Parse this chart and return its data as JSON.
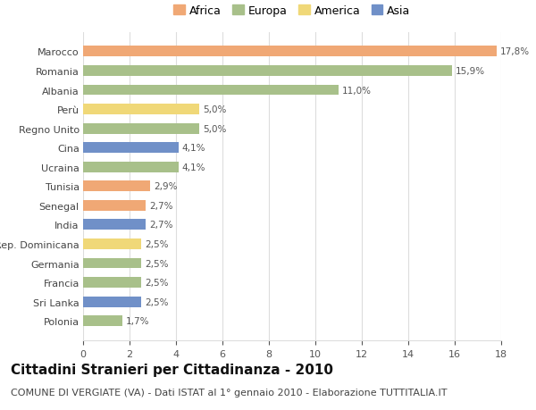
{
  "categories": [
    "Polonia",
    "Sri Lanka",
    "Francia",
    "Germania",
    "Rep. Dominicana",
    "India",
    "Senegal",
    "Tunisia",
    "Ucraina",
    "Cina",
    "Regno Unito",
    "Perù",
    "Albania",
    "Romania",
    "Marocco"
  ],
  "values": [
    1.7,
    2.5,
    2.5,
    2.5,
    2.5,
    2.7,
    2.7,
    2.9,
    4.1,
    4.1,
    5.0,
    5.0,
    11.0,
    15.9,
    17.8
  ],
  "labels": [
    "1,7%",
    "2,5%",
    "2,5%",
    "2,5%",
    "2,5%",
    "2,7%",
    "2,7%",
    "2,9%",
    "4,1%",
    "4,1%",
    "5,0%",
    "5,0%",
    "11,0%",
    "15,9%",
    "17,8%"
  ],
  "continents": [
    "Europa",
    "Asia",
    "Europa",
    "Europa",
    "America",
    "Asia",
    "Africa",
    "Africa",
    "Europa",
    "Asia",
    "Europa",
    "America",
    "Europa",
    "Europa",
    "Africa"
  ],
  "continent_colors": {
    "Africa": "#F0A875",
    "Europa": "#A8C08A",
    "America": "#F0D878",
    "Asia": "#7090C8"
  },
  "legend_order": [
    "Africa",
    "Europa",
    "America",
    "Asia"
  ],
  "title": "Cittadini Stranieri per Cittadinanza - 2010",
  "subtitle": "COMUNE DI VERGIATE (VA) - Dati ISTAT al 1° gennaio 2010 - Elaborazione TUTTITALIA.IT",
  "xlim": [
    0,
    18
  ],
  "xticks": [
    0,
    2,
    4,
    6,
    8,
    10,
    12,
    14,
    16,
    18
  ],
  "background_color": "#FFFFFF",
  "grid_color": "#DDDDDD",
  "bar_height": 0.55,
  "title_fontsize": 11,
  "subtitle_fontsize": 8,
  "label_fontsize": 7.5,
  "tick_fontsize": 8,
  "legend_fontsize": 9
}
